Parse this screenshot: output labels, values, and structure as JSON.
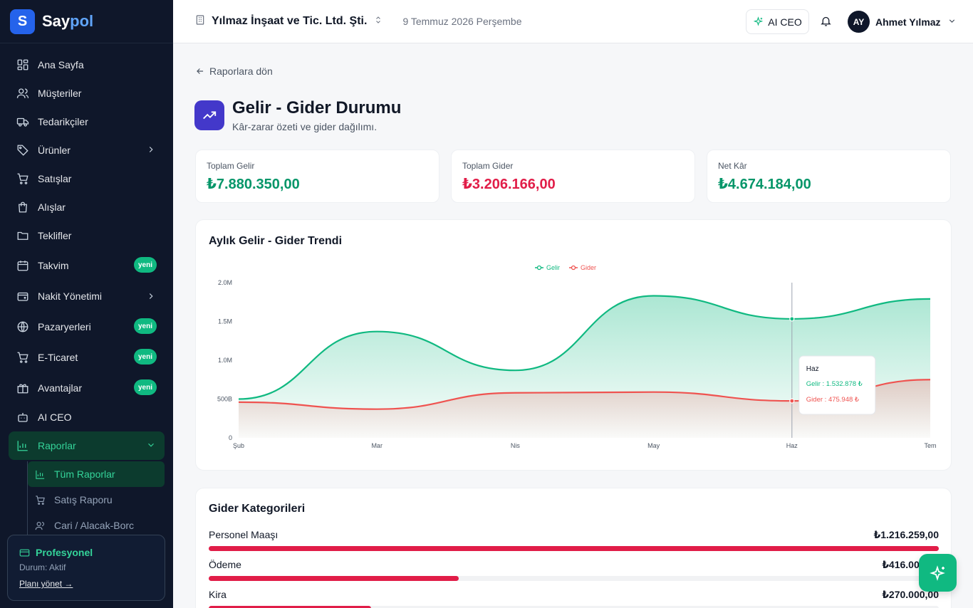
{
  "sidebar": {
    "logo_letter": "S",
    "logo_main": "Say",
    "logo_accent": "pol",
    "items": [
      {
        "label": "Ana Sayfa"
      },
      {
        "label": "Müşteriler"
      },
      {
        "label": "Tedarikçiler"
      },
      {
        "label": "Ürünler"
      },
      {
        "label": "Satışlar"
      },
      {
        "label": "Alışlar"
      },
      {
        "label": "Teklifler"
      },
      {
        "label": "Takvim",
        "badge": "yeni"
      },
      {
        "label": "Nakit Yönetimi"
      },
      {
        "label": "Pazaryerleri",
        "badge": "yeni"
      },
      {
        "label": "E-Ticaret",
        "badge": "yeni"
      },
      {
        "label": "Avantajlar",
        "badge": "yeni"
      },
      {
        "label": "AI CEO"
      },
      {
        "label": "Raporlar"
      }
    ],
    "sub_items": [
      {
        "label": "Tüm Raporlar"
      },
      {
        "label": "Satış Raporu"
      },
      {
        "label": "Cari / Alacak-Borc"
      }
    ],
    "plan": {
      "title": "Profesyonel",
      "status": "Durum: Aktif",
      "link": "Planı yönet →"
    }
  },
  "header": {
    "company": "Yılmaz İnşaat ve Tic. Ltd. Şti.",
    "date": "9 Temmuz 2026 Perşembe",
    "ai_ceo": "AI CEO",
    "avatar_initials": "AY",
    "user_name": "Ahmet Yılmaz"
  },
  "main": {
    "back_label": "Raporlara dön",
    "title": "Gelir - Gider Durumu",
    "subtitle": "Kâr-zarar özeti ve gider dağılımı.",
    "stats": [
      {
        "label": "Toplam Gelir",
        "value": "₺7.880.350,00"
      },
      {
        "label": "Toplam Gider",
        "value": "₺3.206.166,00"
      },
      {
        "label": "Net Kâr",
        "value": "₺4.674.184,00"
      }
    ]
  },
  "chart_data": {
    "type": "area",
    "title": "Aylık Gelir - Gider Trendi",
    "categories": [
      "Şub",
      "Mar",
      "Nis",
      "May",
      "Haz",
      "Tem"
    ],
    "series": [
      {
        "name": "Gelir",
        "color": "#10b981",
        "values": [
          500000,
          1370000,
          870000,
          1830000,
          1532878,
          1790000
        ]
      },
      {
        "name": "Gider",
        "color": "#ef5350",
        "values": [
          460000,
          370000,
          580000,
          590000,
          475948,
          750000
        ]
      }
    ],
    "y_ticks": [
      "0",
      "500B",
      "1.0M",
      "1.5M",
      "2.0M"
    ],
    "ylim": [
      0,
      2000000
    ],
    "legend": "top-center",
    "tooltip": {
      "category": "Haz",
      "gelir_text": "Gelir : 1.532.878 ₺",
      "gider_text": "Gider : 475.948 ₺"
    }
  },
  "gider": {
    "title": "Gider Kategorileri",
    "items": [
      {
        "label": "Personel Maaşı",
        "amount": "₺1.216.259,00",
        "ratio": 1.0
      },
      {
        "label": "Ödeme",
        "amount": "₺416.000,00",
        "ratio": 0.342
      },
      {
        "label": "Kira",
        "amount": "₺270.000,00",
        "ratio": 0.222
      }
    ]
  }
}
